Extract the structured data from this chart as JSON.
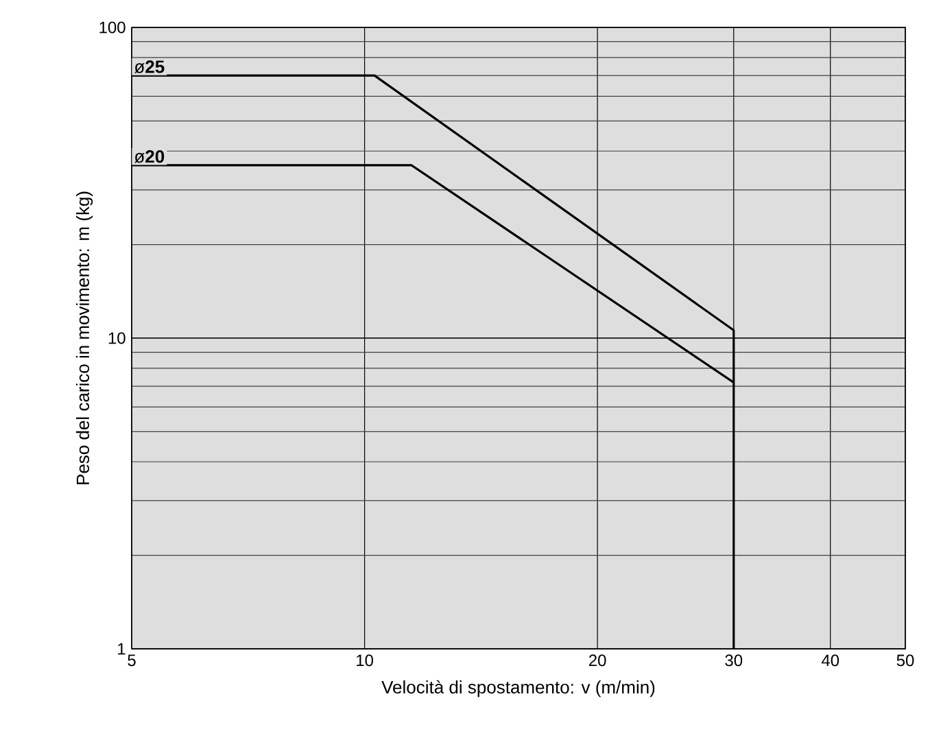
{
  "chart_data": {
    "type": "line",
    "xlabel": "Velocità  di spostamento: v (m/min)",
    "ylabel": "Peso del carico in movimento: m (kg)",
    "log": "xy",
    "xlim": [
      5,
      50
    ],
    "ylim": [
      1,
      100
    ],
    "xticks": [
      5,
      10,
      20,
      30,
      40,
      50
    ],
    "yticks": [
      1,
      10,
      100
    ],
    "grid": true,
    "legend": false,
    "marker": "none",
    "line_style": "solid",
    "series": [
      {
        "name": "ø**25**",
        "color": "#000000",
        "x": [
          5,
          10.3,
          30,
          30
        ],
        "values": [
          70,
          70,
          10.6,
          1
        ]
      },
      {
        "name": "ø**20**",
        "color": "#000000",
        "x": [
          5,
          11.5,
          30
        ],
        "values": [
          36,
          36,
          7.2
        ]
      }
    ]
  }
}
